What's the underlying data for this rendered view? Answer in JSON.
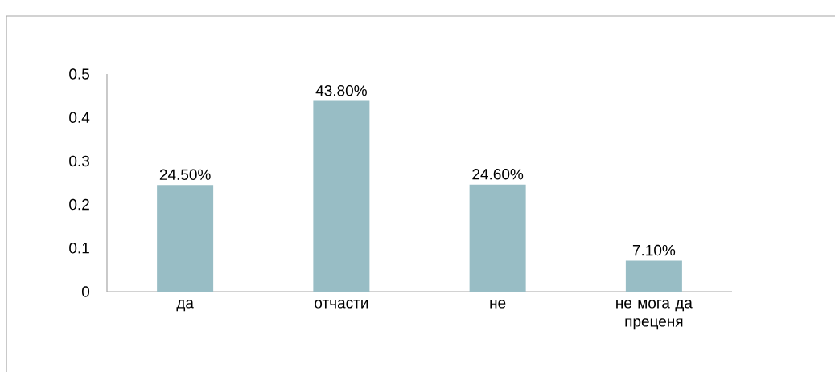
{
  "chart_data": {
    "type": "bar",
    "categories": [
      "да",
      "отчасти",
      "не",
      "не мога да преценя"
    ],
    "values": [
      0.245,
      0.438,
      0.246,
      0.071
    ],
    "value_labels": [
      "24.50%",
      "43.80%",
      "24.60%",
      "7.10%"
    ],
    "color": "#98bdc5",
    "ylim": [
      0,
      0.5
    ],
    "yticks": [
      0,
      0.1,
      0.2,
      0.3,
      0.4,
      0.5
    ]
  }
}
